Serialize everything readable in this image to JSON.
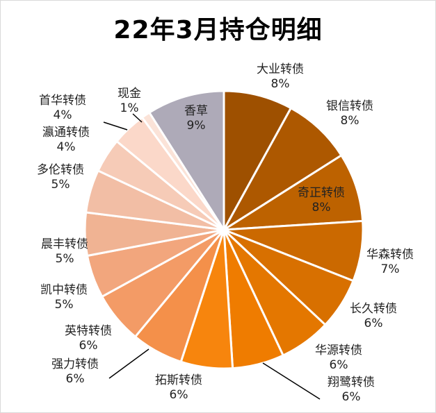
{
  "chart_data": {
    "type": "pie",
    "title": "22年3月持仓明细",
    "slices": [
      {
        "name": "大业转债",
        "pct": "8%",
        "value": 8,
        "color": "#9e5000"
      },
      {
        "name": "银信转债",
        "pct": "8%",
        "value": 8,
        "color": "#ad5800"
      },
      {
        "name": "奇正转债",
        "pct": "8%",
        "value": 8,
        "color": "#bd6200"
      },
      {
        "name": "华森转债",
        "pct": "7%",
        "value": 7,
        "color": "#cb6900"
      },
      {
        "name": "长久转债",
        "pct": "6%",
        "value": 6,
        "color": "#d87000"
      },
      {
        "name": "华源转债",
        "pct": "6%",
        "value": 6,
        "color": "#e47700"
      },
      {
        "name": "翔鹭转债",
        "pct": "6%",
        "value": 6,
        "color": "#ef7c00"
      },
      {
        "name": "拓斯转债",
        "pct": "6%",
        "value": 6,
        "color": "#f7850d"
      },
      {
        "name": "强力转债",
        "pct": "6%",
        "value": 6,
        "color": "#f4904a"
      },
      {
        "name": "英特转债",
        "pct": "6%",
        "value": 6,
        "color": "#f39b66"
      },
      {
        "name": "凯中转债",
        "pct": "5%",
        "value": 5,
        "color": "#f2a67d"
      },
      {
        "name": "晨丰转债",
        "pct": "5%",
        "value": 5,
        "color": "#f0b393"
      },
      {
        "name": "多伦转债",
        "pct": "5%",
        "value": 5,
        "color": "#f2bea5"
      },
      {
        "name": "瀛通转债",
        "pct": "4%",
        "value": 4,
        "color": "#f6cbb7"
      },
      {
        "name": "首华转债",
        "pct": "4%",
        "value": 4,
        "color": "#fbd8c9"
      },
      {
        "name": "现金",
        "pct": "1%",
        "value": 1,
        "color": "#fbe3d8"
      },
      {
        "name": "香草",
        "pct": "9%",
        "value": 9,
        "color": "#aeaab8"
      }
    ]
  }
}
